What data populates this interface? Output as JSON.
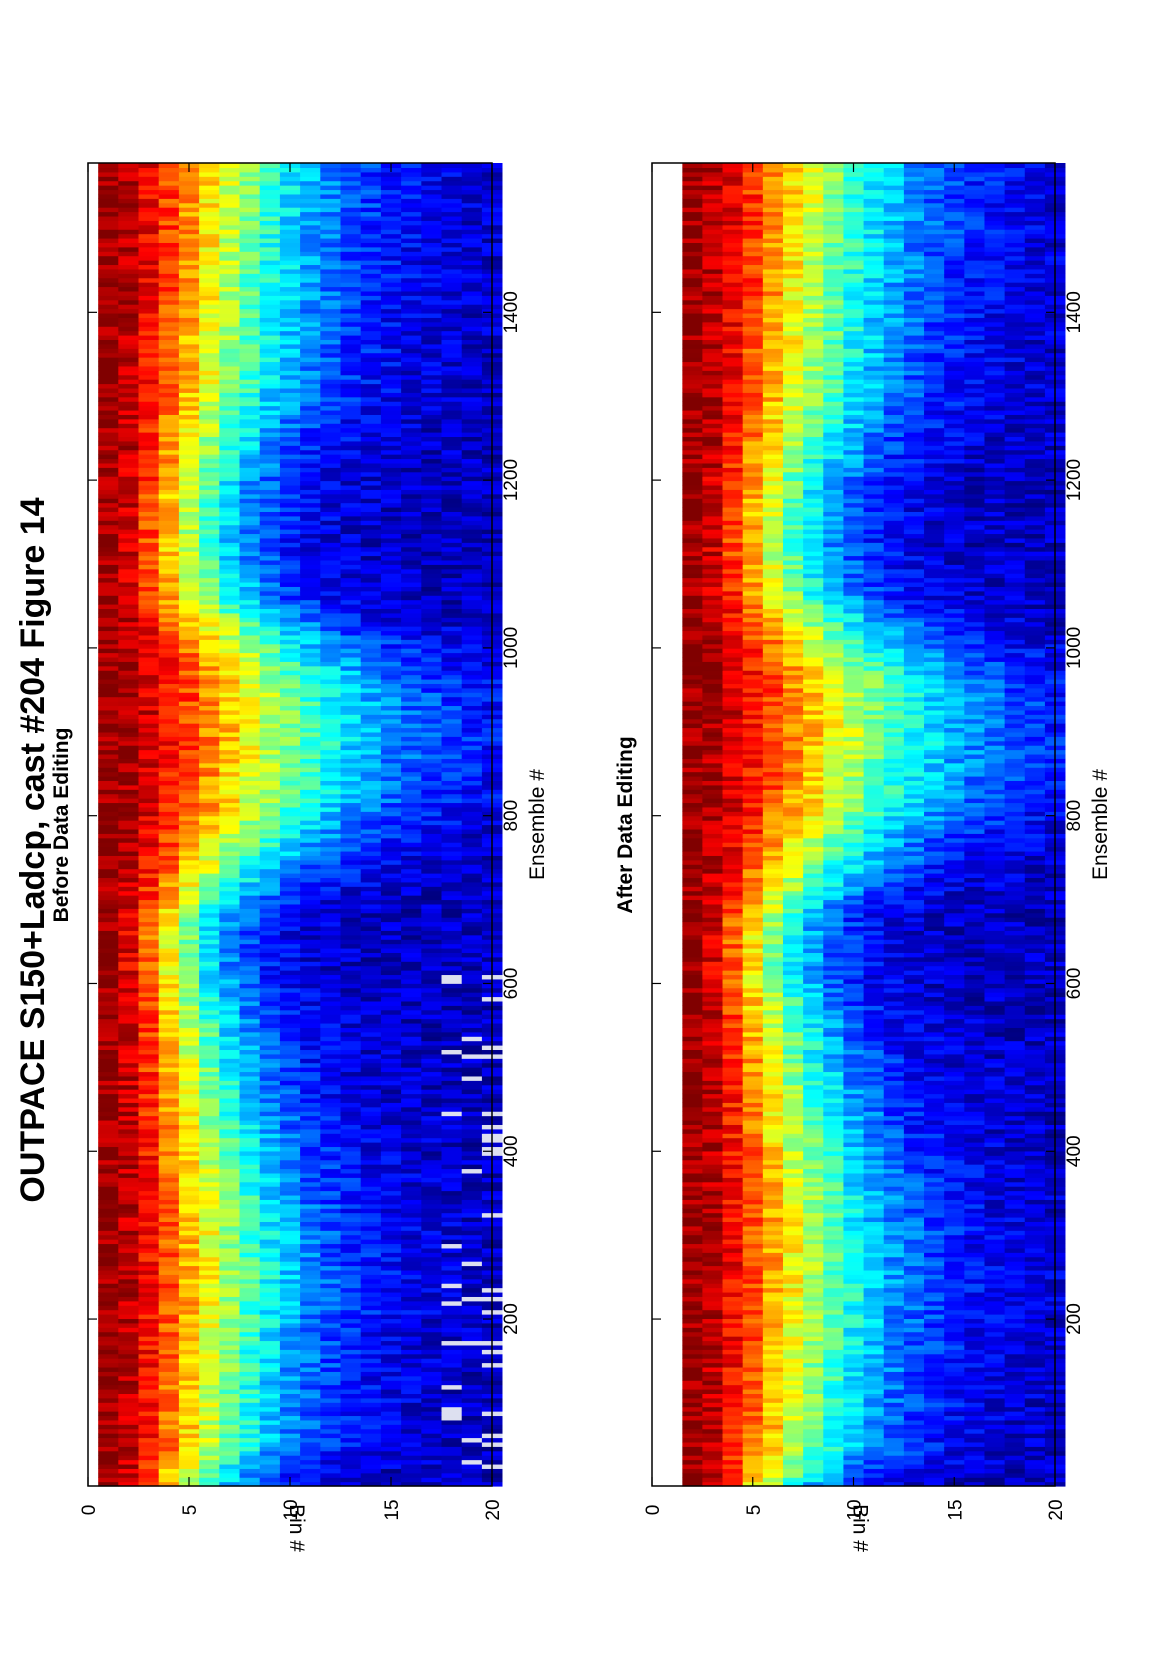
{
  "figure_title": "OUTPACE S150+Ladcp, cast #204  Figure 14",
  "chart_data": [
    {
      "type": "heatmap",
      "subtitle": "Before Data Editing",
      "xlabel": "Ensemble #",
      "ylabel": "Bin #",
      "xticks": [
        200,
        400,
        600,
        800,
        1000,
        1200,
        1400
      ],
      "yticks": [
        0,
        5,
        10,
        15,
        20
      ],
      "xlim": [
        1,
        1578
      ],
      "ylim": [
        0,
        20
      ],
      "y_direction": "down",
      "first_bin": 1,
      "bins": 20,
      "colormap": "jet",
      "white_gaps_near_bins": [
        18,
        20
      ],
      "column_profiles": [
        {
          "ensemble": 1,
          "half_width_bins": 5.0
        },
        {
          "ensemble": 50,
          "half_width_bins": 6.8
        },
        {
          "ensemble": 150,
          "half_width_bins": 7.2
        },
        {
          "ensemble": 250,
          "half_width_bins": 7.8
        },
        {
          "ensemble": 350,
          "half_width_bins": 7.2
        },
        {
          "ensemble": 450,
          "half_width_bins": 6.2
        },
        {
          "ensemble": 550,
          "half_width_bins": 5.4
        },
        {
          "ensemble": 620,
          "half_width_bins": 4.6
        },
        {
          "ensemble": 680,
          "half_width_bins": 4.8
        },
        {
          "ensemble": 760,
          "half_width_bins": 7.8
        },
        {
          "ensemble": 820,
          "half_width_bins": 10.0
        },
        {
          "ensemble": 900,
          "half_width_bins": 11.0
        },
        {
          "ensemble": 960,
          "half_width_bins": 10.5
        },
        {
          "ensemble": 1010,
          "half_width_bins": 8.5
        },
        {
          "ensemble": 1060,
          "half_width_bins": 6.0
        },
        {
          "ensemble": 1120,
          "half_width_bins": 5.2
        },
        {
          "ensemble": 1200,
          "half_width_bins": 5.6
        },
        {
          "ensemble": 1260,
          "half_width_bins": 6.5
        },
        {
          "ensemble": 1300,
          "half_width_bins": 7.2
        },
        {
          "ensemble": 1400,
          "half_width_bins": 7.8
        },
        {
          "ensemble": 1500,
          "half_width_bins": 8.2
        },
        {
          "ensemble": 1578,
          "half_width_bins": 8.4
        }
      ]
    },
    {
      "type": "heatmap",
      "subtitle": "After Data Editing",
      "xlabel": "Ensemble #",
      "ylabel": "Bin #",
      "xticks": [
        200,
        400,
        600,
        800,
        1000,
        1200,
        1400
      ],
      "yticks": [
        0,
        5,
        10,
        15,
        20
      ],
      "xlim": [
        1,
        1578
      ],
      "ylim": [
        0,
        20
      ],
      "y_direction": "down",
      "first_bin": 2,
      "bins": 20,
      "colormap": "jet",
      "white_gaps_near_bins": [],
      "column_profiles": [
        {
          "ensemble": 1,
          "half_width_bins": 5.0
        },
        {
          "ensemble": 50,
          "half_width_bins": 7.0
        },
        {
          "ensemble": 150,
          "half_width_bins": 7.5
        },
        {
          "ensemble": 250,
          "half_width_bins": 8.0
        },
        {
          "ensemble": 350,
          "half_width_bins": 7.5
        },
        {
          "ensemble": 450,
          "half_width_bins": 6.5
        },
        {
          "ensemble": 550,
          "half_width_bins": 5.6
        },
        {
          "ensemble": 620,
          "half_width_bins": 4.8
        },
        {
          "ensemble": 680,
          "half_width_bins": 5.0
        },
        {
          "ensemble": 760,
          "half_width_bins": 8.0
        },
        {
          "ensemble": 820,
          "half_width_bins": 10.0
        },
        {
          "ensemble": 900,
          "half_width_bins": 11.0
        },
        {
          "ensemble": 960,
          "half_width_bins": 10.5
        },
        {
          "ensemble": 1010,
          "half_width_bins": 8.5
        },
        {
          "ensemble": 1060,
          "half_width_bins": 6.2
        },
        {
          "ensemble": 1120,
          "half_width_bins": 5.4
        },
        {
          "ensemble": 1200,
          "half_width_bins": 5.8
        },
        {
          "ensemble": 1260,
          "half_width_bins": 6.8
        },
        {
          "ensemble": 1300,
          "half_width_bins": 7.5
        },
        {
          "ensemble": 1400,
          "half_width_bins": 8.0
        },
        {
          "ensemble": 1500,
          "half_width_bins": 8.4
        },
        {
          "ensemble": 1578,
          "half_width_bins": 8.6
        }
      ]
    }
  ]
}
